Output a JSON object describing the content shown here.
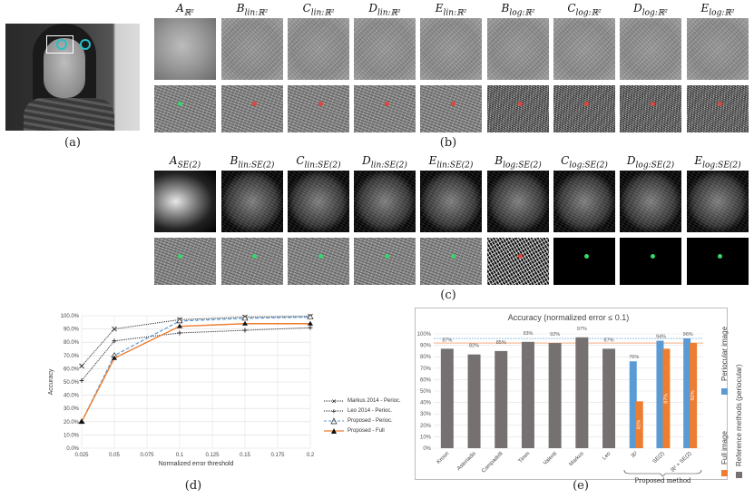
{
  "panels": {
    "a": "(a)",
    "b": "(b)",
    "c": "(c)",
    "d": "(d)",
    "e": "(e)"
  },
  "row_b_labels": [
    "A_{ℝ²}",
    "B_{lin:ℝ²}",
    "C_{lin:ℝ²}",
    "D_{lin:ℝ²}",
    "E_{lin:ℝ²}",
    "B_{log:ℝ²}",
    "C_{log:ℝ²}",
    "D_{log:ℝ²}",
    "E_{log:ℝ²}"
  ],
  "row_c_labels": [
    "A_{SE(2)}",
    "B_{lin:SE(2)}",
    "C_{lin:SE(2)}",
    "D_{lin:SE(2)}",
    "E_{lin:SE(2)}",
    "B_{log:SE(2)}",
    "C_{log:SE(2)}",
    "D_{log:SE(2)}",
    "E_{log:SE(2)}"
  ],
  "line_chart": {
    "xlabel": "Normalized error threshold",
    "ylabel": "Accuracy",
    "x_ticks": [
      "0.025",
      "0.05",
      "0.075",
      "0.1",
      "0.125",
      "0.15",
      "0.175",
      "0.2"
    ],
    "y_ticks": [
      "0.0%",
      "10.0%",
      "20.0%",
      "30.0%",
      "40.0%",
      "50.0%",
      "60.0%",
      "70.0%",
      "80.0%",
      "90.0%",
      "100.0%"
    ],
    "legend": [
      "Markus 2014 - Perioc.",
      "Leo 2014 - Perioc.",
      "Proposed - Perioc.",
      "Proposed - Full"
    ]
  },
  "chart_data": [
    {
      "type": "line",
      "xlabel": "Normalized error threshold",
      "ylabel": "Accuracy",
      "x": [
        0.025,
        0.05,
        0.1,
        0.15,
        0.2
      ],
      "xlim": [
        0.025,
        0.2
      ],
      "ylim": [
        0,
        100
      ],
      "series": [
        {
          "name": "Markus 2014 - Perioc.",
          "values": [
            62,
            90,
            97,
            99,
            99.5
          ],
          "color": "#222222"
        },
        {
          "name": "Leo 2014 - Perioc.",
          "values": [
            51,
            81,
            87,
            89,
            91
          ],
          "color": "#222222"
        },
        {
          "name": "Proposed - Perioc.",
          "values": [
            20,
            70,
            96,
            98,
            99
          ],
          "color": "#5b9bd5"
        },
        {
          "name": "Proposed - Full",
          "values": [
            20,
            68,
            92,
            94,
            94
          ],
          "color": "#ed7d31"
        }
      ]
    },
    {
      "type": "bar",
      "title": "Accuracy (normalized error ≤ 0.1)",
      "categories": [
        "Kroon",
        "Asteriadis",
        "Campadelli",
        "Timm",
        "Valenti",
        "Markus",
        "Leo",
        "ℝ²",
        "SE(2)",
        "ℝ² + SE(2)"
      ],
      "y_ticks": [
        "0%",
        "10%",
        "20%",
        "30%",
        "40%",
        "50%",
        "60%",
        "70%",
        "80%",
        "90%",
        "100%"
      ],
      "ylim": [
        0,
        100
      ],
      "reference": [
        87,
        82,
        85,
        93,
        92,
        97,
        87
      ],
      "periocular": [
        76,
        94,
        96
      ],
      "full": [
        41,
        87,
        92
      ],
      "value_labels": {
        "reference": [
          "87%",
          "82%",
          "85%",
          "93%",
          "92%",
          "97%",
          "87%"
        ],
        "periocular": [
          "76%",
          "94%",
          "96%"
        ],
        "full": [
          "41%",
          "87%",
          "92%"
        ]
      },
      "group_label": "Proposed method",
      "legend": [
        "Periocular image",
        "Reference methods (periocular)",
        "Full image"
      ],
      "colors": {
        "reference": "#767171",
        "periocular": "#5b9bd5",
        "full": "#ed7d31"
      }
    }
  ]
}
